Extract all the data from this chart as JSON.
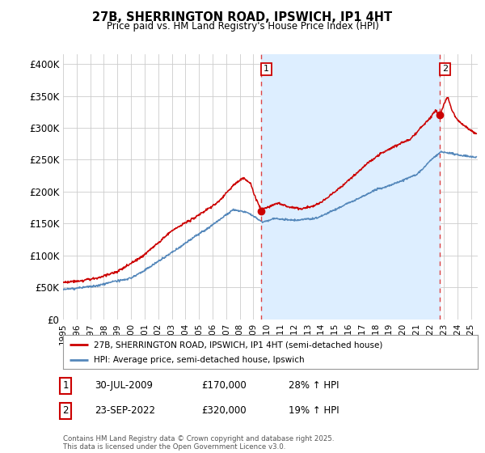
{
  "title1": "27B, SHERRINGTON ROAD, IPSWICH, IP1 4HT",
  "title2": "Price paid vs. HM Land Registry's House Price Index (HPI)",
  "ylabel_ticks": [
    "£0",
    "£50K",
    "£100K",
    "£150K",
    "£200K",
    "£250K",
    "£300K",
    "£350K",
    "£400K"
  ],
  "ytick_values": [
    0,
    50000,
    100000,
    150000,
    200000,
    250000,
    300000,
    350000,
    400000
  ],
  "ylim": [
    0,
    415000
  ],
  "xlim_start": 1995.0,
  "xlim_end": 2025.5,
  "marker1_x": 2009.58,
  "marker1_y": 170000,
  "marker2_x": 2022.73,
  "marker2_y": 320000,
  "vline1_x": 2009.58,
  "vline2_x": 2022.73,
  "red_line_color": "#cc0000",
  "blue_line_color": "#5588bb",
  "shade_color": "#ddeeff",
  "vline_color": "#dd4444",
  "grid_color": "#cccccc",
  "bg_color": "#ffffff",
  "legend_label1": "27B, SHERRINGTON ROAD, IPSWICH, IP1 4HT (semi-detached house)",
  "legend_label2": "HPI: Average price, semi-detached house, Ipswich",
  "note1_label": "1",
  "note1_date": "30-JUL-2009",
  "note1_price": "£170,000",
  "note1_hpi": "28% ↑ HPI",
  "note2_label": "2",
  "note2_date": "23-SEP-2022",
  "note2_price": "£320,000",
  "note2_hpi": "19% ↑ HPI",
  "footer": "Contains HM Land Registry data © Crown copyright and database right 2025.\nThis data is licensed under the Open Government Licence v3.0.",
  "xtick_years": [
    1995,
    1996,
    1997,
    1998,
    1999,
    2000,
    2001,
    2002,
    2003,
    2004,
    2005,
    2006,
    2007,
    2008,
    2009,
    2010,
    2011,
    2012,
    2013,
    2014,
    2015,
    2016,
    2017,
    2018,
    2019,
    2020,
    2021,
    2022,
    2023,
    2024,
    2025
  ]
}
